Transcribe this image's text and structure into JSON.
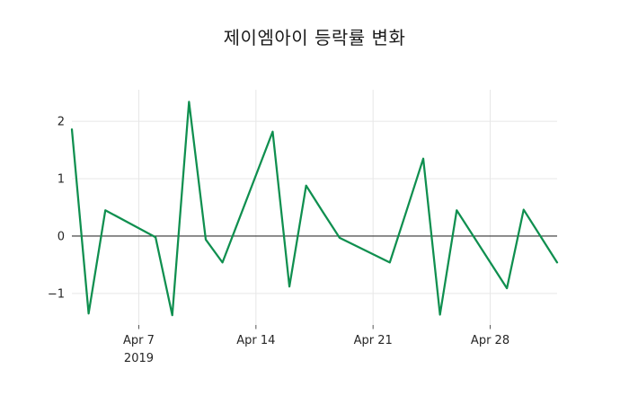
{
  "title": "제이엠아이 등락률 변화",
  "chart_data": {
    "type": "line",
    "title": "제이엠아이 등락률 변화",
    "xlabel": "",
    "ylabel": "",
    "grid": true,
    "legend": "none",
    "x_range": [
      "2019-04-03",
      "2019-05-02"
    ],
    "y_range": [
      -1.55,
      2.55
    ],
    "series": [
      {
        "name": "제이엠아이 등락률",
        "color": "#0f8f4f",
        "points": [
          {
            "date": "2019-04-03",
            "value": 1.86
          },
          {
            "date": "2019-04-04",
            "value": -1.35
          },
          {
            "date": "2019-04-05",
            "value": 0.45
          },
          {
            "date": "2019-04-08",
            "value": -0.02
          },
          {
            "date": "2019-04-09",
            "value": -1.38
          },
          {
            "date": "2019-04-10",
            "value": 2.34
          },
          {
            "date": "2019-04-11",
            "value": -0.06
          },
          {
            "date": "2019-04-12",
            "value": -0.46
          },
          {
            "date": "2019-04-15",
            "value": 1.82
          },
          {
            "date": "2019-04-16",
            "value": -0.88
          },
          {
            "date": "2019-04-17",
            "value": 0.88
          },
          {
            "date": "2019-04-18",
            "value": 0.42
          },
          {
            "date": "2019-04-19",
            "value": -0.03
          },
          {
            "date": "2019-04-22",
            "value": -0.46
          },
          {
            "date": "2019-04-23",
            "value": 0.44
          },
          {
            "date": "2019-04-24",
            "value": 1.35
          },
          {
            "date": "2019-04-25",
            "value": -1.37
          },
          {
            "date": "2019-04-26",
            "value": 0.45
          },
          {
            "date": "2019-04-29",
            "value": -0.91
          },
          {
            "date": "2019-04-30",
            "value": 0.46
          },
          {
            "date": "2019-05-02",
            "value": -0.46
          }
        ]
      }
    ],
    "x_ticks": [
      {
        "date": "2019-04-07",
        "label": "Apr 7",
        "sublabel": "2019"
      },
      {
        "date": "2019-04-14",
        "label": "Apr 14",
        "sublabel": ""
      },
      {
        "date": "2019-04-21",
        "label": "Apr 21",
        "sublabel": ""
      },
      {
        "date": "2019-04-28",
        "label": "Apr 28",
        "sublabel": ""
      }
    ],
    "y_ticks": [
      {
        "value": -1,
        "label": "−1"
      },
      {
        "value": 0,
        "label": "0"
      },
      {
        "value": 1,
        "label": "1"
      },
      {
        "value": 2,
        "label": "2"
      }
    ],
    "zero_line": true,
    "colors": {
      "line": "#0f8f4f",
      "grid": "#e7e7e7",
      "zero_line": "#333333",
      "tick_mark": "#555555",
      "tick_text": "#262626",
      "background": "#ffffff"
    }
  }
}
